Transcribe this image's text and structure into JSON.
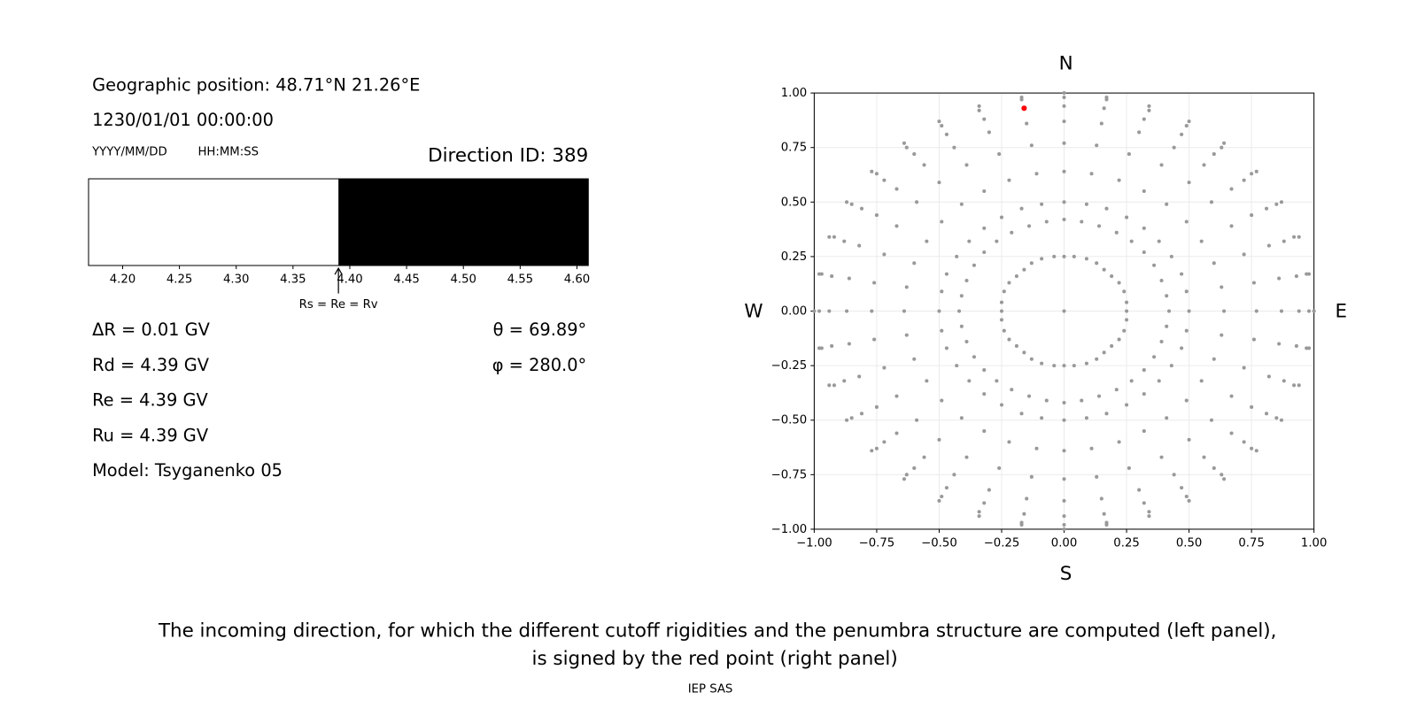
{
  "info": {
    "position": "Geographic position: 48.71°N 21.26°E",
    "datetime": "1230/01/01 00:00:00",
    "date_format": "YYYY/MM/DD",
    "time_format": "HH:MM:SS",
    "direction_id": "Direction ID: 389",
    "delta_r": "ΔR = 0.01 GV",
    "rd": "Rd = 4.39 GV",
    "re": "Re = 4.39 GV",
    "ru": "Ru = 4.39 GV",
    "model": "Model: Tsyganenko 05",
    "theta": "θ = 69.89°",
    "phi": "φ = 280.0°"
  },
  "chart_data": [
    {
      "type": "penumbra",
      "edges": [
        4.17,
        4.39,
        4.61
      ],
      "colors": [
        "#ffffff",
        "#000000"
      ],
      "xlim": [
        4.17,
        4.61
      ],
      "xticks": [
        {
          "value": 4.2,
          "label": "4.20"
        },
        4.25,
        {
          "value": 4.3,
          "label": "4.30"
        },
        4.35,
        {
          "value": 4.4,
          "label": "4.40"
        },
        4.45,
        {
          "value": 4.5,
          "label": "4.50"
        },
        4.55,
        {
          "value": 4.6,
          "label": "4.60"
        }
      ],
      "annotation": {
        "text": "Rs = Re = Rv",
        "x": 4.39
      }
    },
    {
      "type": "scatter",
      "xlim": [
        -1,
        1
      ],
      "ylim": [
        -1,
        1
      ],
      "grid": true,
      "xticks": [
        {
          "value": -1,
          "label": "−1.00"
        },
        {
          "value": -0.75,
          "label": "−0.75"
        },
        {
          "value": -0.5,
          "label": "−0.50"
        },
        {
          "value": -0.25,
          "label": "−0.25"
        },
        {
          "value": 0,
          "label": "0.00"
        },
        0.25,
        {
          "value": 0.5,
          "label": "0.50"
        },
        0.75,
        {
          "value": 1,
          "label": "1.00"
        }
      ],
      "yticks": [
        {
          "value": -1,
          "label": "−1.00"
        },
        {
          "value": -0.75,
          "label": "−0.75"
        },
        {
          "value": -0.5,
          "label": "−0.50"
        },
        {
          "value": -0.25,
          "label": "−0.25"
        },
        {
          "value": 0,
          "label": "0.00"
        },
        0.25,
        {
          "value": 0.5,
          "label": "0.50"
        },
        0.75,
        {
          "value": 1,
          "label": "1.00"
        }
      ],
      "direction_labels": {
        "top": "N",
        "bottom": "S",
        "left": "W",
        "right": "E"
      },
      "series": [
        {
          "color": "#999999",
          "x": [
            0
          ],
          "y": [
            0
          ]
        },
        {
          "color": "#999999",
          "x": [
            0,
            0.04,
            0.09,
            0.13,
            0.16,
            0.19,
            0.22,
            0.24,
            0.25,
            0.25,
            0.25,
            0.24,
            0.22,
            0.19,
            0.16,
            0.13,
            0.09,
            0.04,
            0,
            -0.04,
            -0.09,
            -0.13,
            -0.16,
            -0.19,
            -0.22,
            -0.24,
            -0.25,
            -0.25,
            -0.25,
            -0.24,
            -0.22,
            -0.19,
            -0.16,
            -0.13,
            -0.09,
            -0.04
          ],
          "y": [
            0.25,
            0.25,
            0.24,
            0.22,
            0.19,
            0.16,
            0.13,
            0.09,
            0.04,
            0,
            -0.04,
            -0.09,
            -0.13,
            -0.16,
            -0.19,
            -0.22,
            -0.24,
            -0.25,
            -0.25,
            -0.25,
            -0.24,
            -0.22,
            -0.19,
            -0.16,
            -0.13,
            -0.09,
            -0.04,
            0,
            0.04,
            0.09,
            0.13,
            0.16,
            0.19,
            0.22,
            0.24,
            0.25
          ]
        },
        {
          "color": "#999999",
          "x": [
            0,
            0.07,
            0.14,
            0.21,
            0.27,
            0.32,
            0.36,
            0.39,
            0.41,
            0.42,
            0.41,
            0.39,
            0.36,
            0.32,
            0.27,
            0.21,
            0.14,
            0.07,
            0,
            -0.07,
            -0.14,
            -0.21,
            -0.27,
            -0.32,
            -0.36,
            -0.39,
            -0.41,
            -0.42,
            -0.41,
            -0.39,
            -0.36,
            -0.32,
            -0.27,
            -0.21,
            -0.14,
            -0.07
          ],
          "y": [
            0.42,
            0.41,
            0.39,
            0.36,
            0.32,
            0.27,
            0.21,
            0.14,
            0.07,
            0,
            -0.07,
            -0.14,
            -0.21,
            -0.27,
            -0.32,
            -0.36,
            -0.39,
            -0.41,
            -0.42,
            -0.41,
            -0.39,
            -0.36,
            -0.32,
            -0.27,
            -0.21,
            -0.14,
            -0.07,
            0,
            0.07,
            0.14,
            0.21,
            0.27,
            0.32,
            0.36,
            0.39,
            0.41
          ]
        },
        {
          "color": "#999999",
          "x": [
            0,
            0.09,
            0.17,
            0.25,
            0.32,
            0.38,
            0.43,
            0.47,
            0.49,
            0.5,
            0.49,
            0.47,
            0.43,
            0.38,
            0.32,
            0.25,
            0.17,
            0.09,
            0,
            -0.09,
            -0.17,
            -0.25,
            -0.32,
            -0.38,
            -0.43,
            -0.47,
            -0.49,
            -0.5,
            -0.49,
            -0.47,
            -0.43,
            -0.38,
            -0.32,
            -0.25,
            -0.17,
            -0.09
          ],
          "y": [
            0.5,
            0.49,
            0.47,
            0.43,
            0.38,
            0.32,
            0.25,
            0.17,
            0.09,
            0,
            -0.09,
            -0.17,
            -0.25,
            -0.32,
            -0.38,
            -0.43,
            -0.47,
            -0.49,
            -0.5,
            -0.49,
            -0.47,
            -0.43,
            -0.38,
            -0.32,
            -0.25,
            -0.17,
            -0.09,
            0,
            0.09,
            0.17,
            0.25,
            0.32,
            0.38,
            0.43,
            0.47,
            0.49
          ]
        },
        {
          "color": "#999999",
          "x": [
            0,
            0.11,
            0.22,
            0.32,
            0.41,
            0.49,
            0.55,
            0.6,
            0.63,
            0.64,
            0.63,
            0.6,
            0.55,
            0.49,
            0.41,
            0.32,
            0.22,
            0.11,
            0,
            -0.11,
            -0.22,
            -0.32,
            -0.41,
            -0.49,
            -0.55,
            -0.6,
            -0.63,
            -0.64,
            -0.63,
            -0.6,
            -0.55,
            -0.49,
            -0.41,
            -0.32,
            -0.22,
            -0.11
          ],
          "y": [
            0.64,
            0.63,
            0.6,
            0.55,
            0.49,
            0.41,
            0.32,
            0.22,
            0.11,
            0,
            -0.11,
            -0.22,
            -0.32,
            -0.41,
            -0.49,
            -0.55,
            -0.6,
            -0.63,
            -0.64,
            -0.63,
            -0.6,
            -0.55,
            -0.49,
            -0.41,
            -0.32,
            -0.22,
            -0.11,
            0,
            0.11,
            0.22,
            0.32,
            0.41,
            0.49,
            0.55,
            0.6,
            0.63
          ]
        },
        {
          "color": "#999999",
          "x": [
            0,
            0.13,
            0.26,
            0.39,
            0.5,
            0.59,
            0.67,
            0.72,
            0.76,
            0.77,
            0.76,
            0.72,
            0.67,
            0.59,
            0.5,
            0.39,
            0.26,
            0.13,
            0,
            -0.13,
            -0.26,
            -0.39,
            -0.5,
            -0.59,
            -0.67,
            -0.72,
            -0.76,
            -0.77,
            -0.76,
            -0.72,
            -0.67,
            -0.59,
            -0.5,
            -0.39,
            -0.26,
            -0.13
          ],
          "y": [
            0.77,
            0.76,
            0.72,
            0.67,
            0.59,
            0.5,
            0.39,
            0.26,
            0.13,
            0,
            -0.13,
            -0.26,
            -0.39,
            -0.5,
            -0.59,
            -0.67,
            -0.72,
            -0.76,
            -0.77,
            -0.76,
            -0.72,
            -0.67,
            -0.59,
            -0.5,
            -0.39,
            -0.26,
            -0.13,
            0,
            0.13,
            0.26,
            0.39,
            0.5,
            0.59,
            0.67,
            0.72,
            0.76
          ]
        },
        {
          "color": "#999999",
          "x": [
            0,
            0.15,
            0.3,
            0.44,
            0.56,
            0.67,
            0.75,
            0.82,
            0.86,
            0.87,
            0.86,
            0.82,
            0.75,
            0.67,
            0.56,
            0.44,
            0.3,
            0.15,
            0,
            -0.15,
            -0.3,
            -0.44,
            -0.56,
            -0.67,
            -0.75,
            -0.82,
            -0.86,
            -0.87,
            -0.86,
            -0.82,
            -0.75,
            -0.67,
            -0.56,
            -0.44,
            -0.3,
            -0.15
          ],
          "y": [
            0.87,
            0.86,
            0.82,
            0.75,
            0.67,
            0.56,
            0.44,
            0.3,
            0.15,
            0,
            -0.15,
            -0.3,
            -0.44,
            -0.56,
            -0.67,
            -0.75,
            -0.82,
            -0.86,
            -0.87,
            -0.86,
            -0.82,
            -0.75,
            -0.67,
            -0.56,
            -0.44,
            -0.3,
            -0.15,
            0,
            0.15,
            0.3,
            0.44,
            0.56,
            0.67,
            0.75,
            0.82,
            0.86
          ]
        },
        {
          "color": "#999999",
          "x": [
            0,
            0.16,
            0.32,
            0.47,
            0.6,
            0.72,
            0.81,
            0.88,
            0.93,
            0.94,
            0.93,
            0.88,
            0.81,
            0.72,
            0.6,
            0.47,
            0.32,
            0.16,
            0,
            -0.16,
            -0.32,
            -0.47,
            -0.6,
            -0.72,
            -0.81,
            -0.88,
            -0.93,
            -0.94,
            -0.93,
            -0.88,
            -0.81,
            -0.72,
            -0.6,
            -0.47,
            -0.32,
            -0.16
          ],
          "y": [
            0.94,
            0.93,
            0.88,
            0.81,
            0.72,
            0.6,
            0.47,
            0.32,
            0.16,
            0,
            -0.16,
            -0.32,
            -0.47,
            -0.6,
            -0.72,
            -0.81,
            -0.88,
            -0.93,
            -0.94,
            -0.93,
            -0.88,
            -0.81,
            -0.72,
            -0.6,
            -0.47,
            -0.32,
            -0.16,
            0,
            0.16,
            0.32,
            0.47,
            0.6,
            0.72,
            0.81,
            0.88,
            0.93
          ]
        },
        {
          "color": "#999999",
          "x": [
            0,
            0.17,
            0.34,
            0.49,
            0.63,
            0.75,
            0.85,
            0.92,
            0.97,
            0.98,
            0.97,
            0.92,
            0.85,
            0.75,
            0.63,
            0.49,
            0.34,
            0.17,
            0,
            -0.17,
            -0.34,
            -0.49,
            -0.63,
            -0.75,
            -0.85,
            -0.92,
            -0.97,
            -0.98,
            -0.97,
            -0.92,
            -0.85,
            -0.75,
            -0.63,
            -0.49,
            -0.34,
            -0.17
          ],
          "y": [
            0.98,
            0.97,
            0.92,
            0.85,
            0.75,
            0.63,
            0.49,
            0.34,
            0.17,
            0,
            -0.17,
            -0.34,
            -0.49,
            -0.63,
            -0.75,
            -0.85,
            -0.92,
            -0.97,
            -0.98,
            -0.97,
            -0.92,
            -0.85,
            -0.75,
            -0.63,
            -0.49,
            -0.34,
            -0.17,
            0,
            0.17,
            0.34,
            0.49,
            0.63,
            0.75,
            0.85,
            0.92,
            0.97
          ]
        },
        {
          "color": "#999999",
          "x": [
            0,
            0.17,
            0.34,
            0.5,
            0.64,
            0.77,
            0.87,
            0.94,
            0.98,
            1,
            0.98,
            0.94,
            0.87,
            0.77,
            0.64,
            0.5,
            0.34,
            0.17,
            0,
            -0.17,
            -0.34,
            -0.5,
            -0.64,
            -0.77,
            -0.87,
            -0.94,
            -0.98,
            -1,
            -0.98,
            -0.94,
            -0.87,
            -0.77,
            -0.64,
            -0.5,
            -0.34,
            -0.17
          ],
          "y": [
            1,
            0.98,
            0.94,
            0.87,
            0.77,
            0.64,
            0.5,
            0.34,
            0.17,
            0,
            -0.17,
            -0.34,
            -0.5,
            -0.64,
            -0.77,
            -0.87,
            -0.94,
            -0.98,
            -1,
            -0.98,
            -0.94,
            -0.87,
            -0.77,
            -0.64,
            -0.5,
            -0.34,
            -0.17,
            0,
            0.17,
            0.34,
            0.5,
            0.64,
            0.77,
            0.87,
            0.94,
            0.98
          ]
        },
        {
          "color": "#ff0000",
          "x": [
            -0.16
          ],
          "y": [
            0.93
          ]
        }
      ]
    }
  ],
  "caption": [
    "The incoming direction, for which the different cutoff rigidities and the penumbra structure are computed (left panel),",
    "is signed by the red point (right panel)"
  ],
  "footer": "IEP SAS"
}
